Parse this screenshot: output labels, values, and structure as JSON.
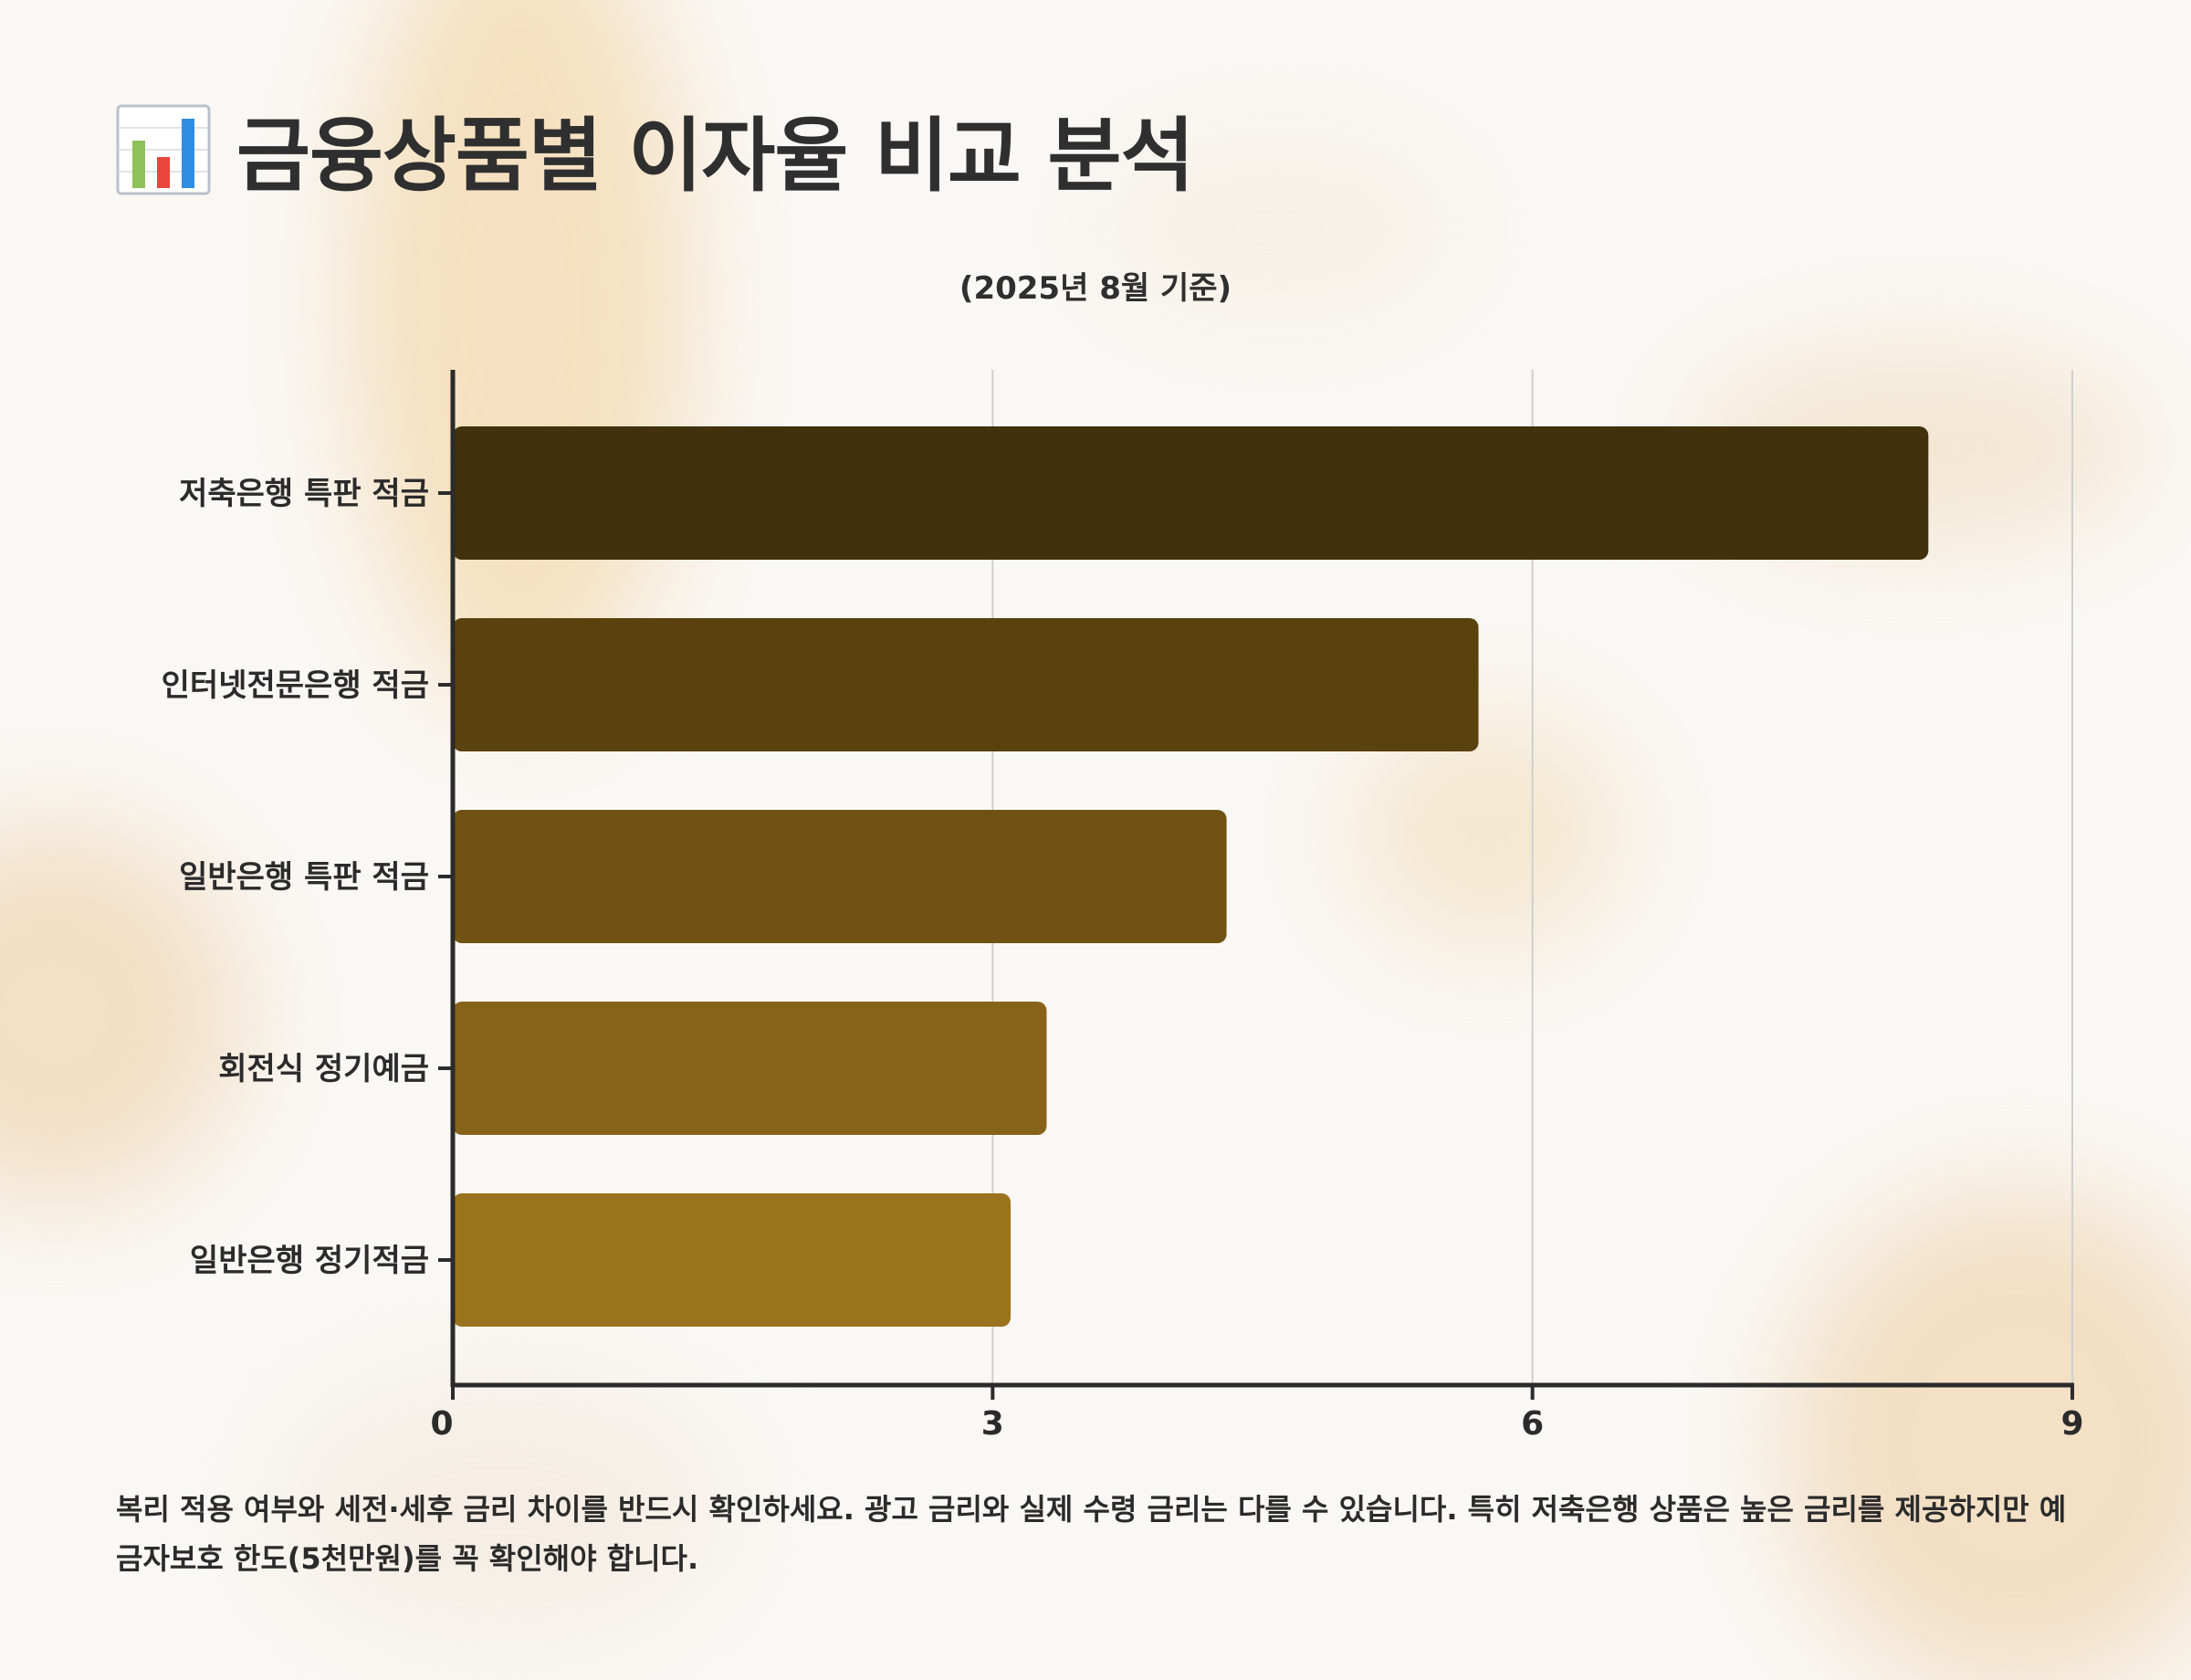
{
  "title": "금융상품별 이자율 비교 분석",
  "title_icon": "bar-chart-icon",
  "chart_data": {
    "type": "bar",
    "orientation": "horizontal",
    "title": "(2025년 8월 기준)",
    "xlabel": "",
    "ylabel": "",
    "categories": [
      "저축은행 특판 적금",
      "인터넷전문은행 적금",
      "일반은행 특판 적금",
      "회전식 정기예금",
      "일반은행 정기적금"
    ],
    "values": [
      8.2,
      5.7,
      4.3,
      3.3,
      3.1
    ],
    "xlim": [
      0,
      9
    ],
    "xticks": [
      0,
      3,
      6,
      9
    ],
    "grid": "vertical",
    "colors": [
      "#42310d",
      "#5a420f",
      "#6f5214",
      "#87631a",
      "#9b731c"
    ]
  },
  "note": "복리 적용 여부와 세전·세후 금리 차이를 반드시 확인하세요. 광고 금리와 실제 수령 금리는 다를 수 있습니다. 특히 저축은행 상품은 높은 금리를 제공하지만 예금자보호 한도(5천만원)를 꼭 확인해야 합니다."
}
